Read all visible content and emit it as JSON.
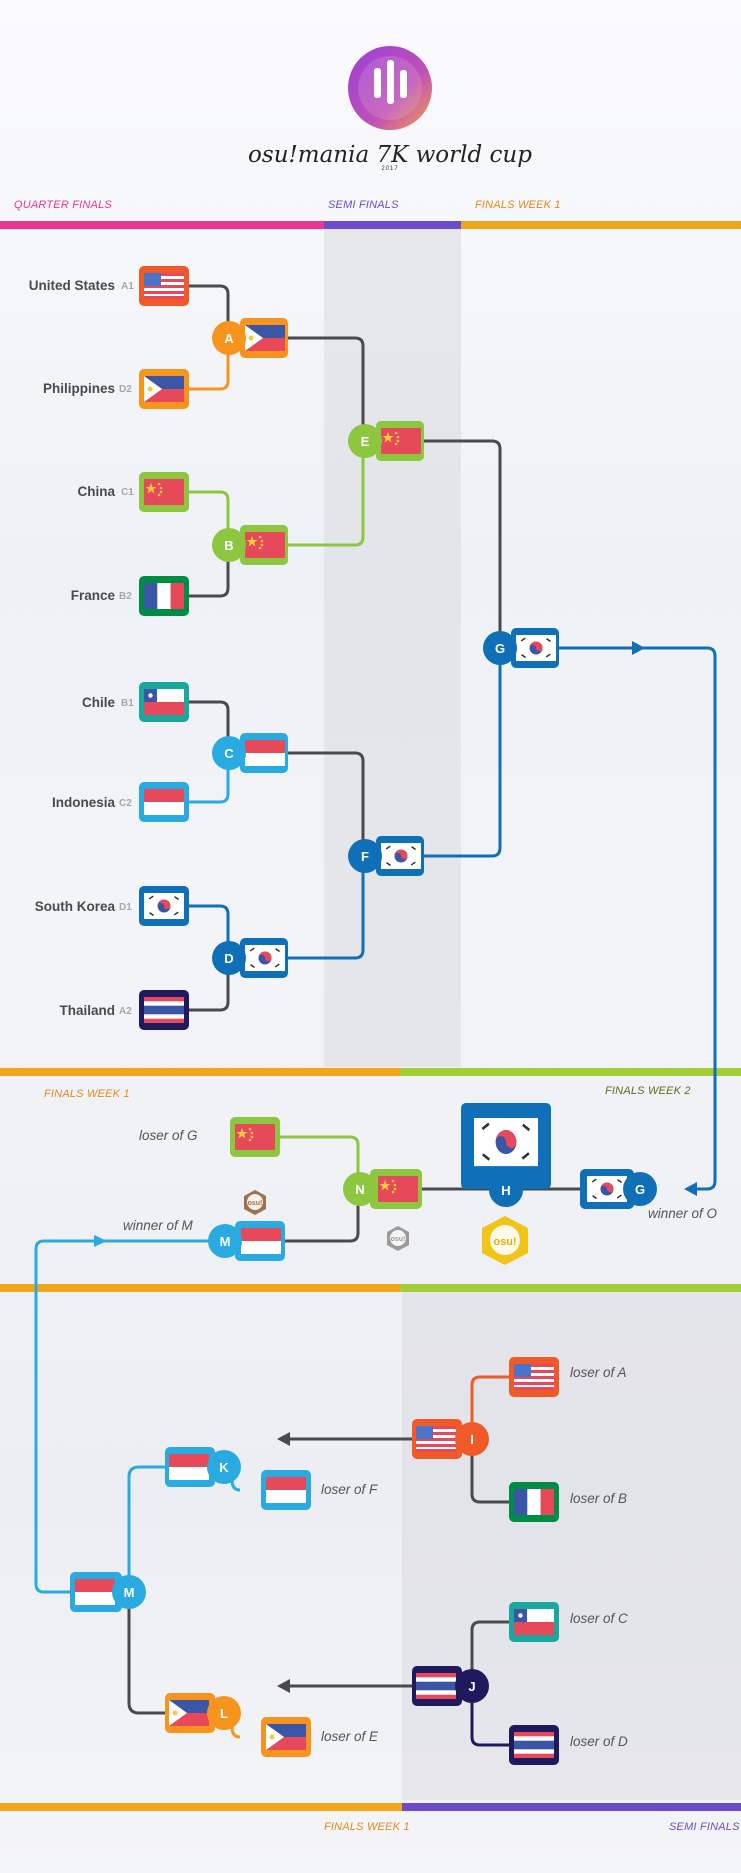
{
  "logo": {
    "title": "osu!mania 7K world cup",
    "year": "2017"
  },
  "sections": {
    "quarter_finals": "QUARTER FINALS",
    "semi_finals": "SEMI FINALS",
    "finals_week_1_top": "FINALS WEEK 1",
    "finals_week_1_mid": "FINALS WEEK 1",
    "finals_week_2": "FINALS WEEK 2",
    "finals_week_1_bottom": "FINALS WEEK 1",
    "semi_finals_bottom": "SEMI FINALS"
  },
  "teams": [
    {
      "name": "United States",
      "seed": "A1"
    },
    {
      "name": "Philippines",
      "seed": "D2"
    },
    {
      "name": "China",
      "seed": "C1"
    },
    {
      "name": "France",
      "seed": "B2"
    },
    {
      "name": "Chile",
      "seed": "B1"
    },
    {
      "name": "Indonesia",
      "seed": "C2"
    },
    {
      "name": "South Korea",
      "seed": "D1"
    },
    {
      "name": "Thailand",
      "seed": "A2"
    }
  ],
  "matches": {
    "A": "A",
    "B": "B",
    "C": "C",
    "D": "D",
    "E": "E",
    "F": "F",
    "G": "G",
    "G2": "G",
    "H": "H",
    "N": "N",
    "M": "M",
    "M2": "M",
    "I": "I",
    "J": "J",
    "K": "K",
    "L": "L"
  },
  "notes": {
    "loser_of_G": "loser of G",
    "winner_of_M": "winner of M",
    "winner_of_O": "winner of O",
    "loser_of_A": "loser of A",
    "loser_of_B": "loser of B",
    "loser_of_F": "loser of F",
    "loser_of_E": "loser of E",
    "loser_of_C": "loser of C",
    "loser_of_D": "loser of D"
  },
  "badges": {
    "osu_small_1": "osu!",
    "osu_small_2": "osu!",
    "osu_big": "osu!"
  },
  "colors": {
    "pink": "#e8378f",
    "purple": "#6c4bcf",
    "orange": "#f7941d",
    "yellow_orange": "#f0a81a",
    "red_orange": "#f05a28",
    "green": "#8dc63f",
    "dark_green": "#008c45",
    "teal": "#1aa89e",
    "sky": "#29abe2",
    "blue": "#0f70b7",
    "navy": "#1f1a5e",
    "gray_line": "#4a4a4a",
    "lime": "#a3cd39"
  }
}
